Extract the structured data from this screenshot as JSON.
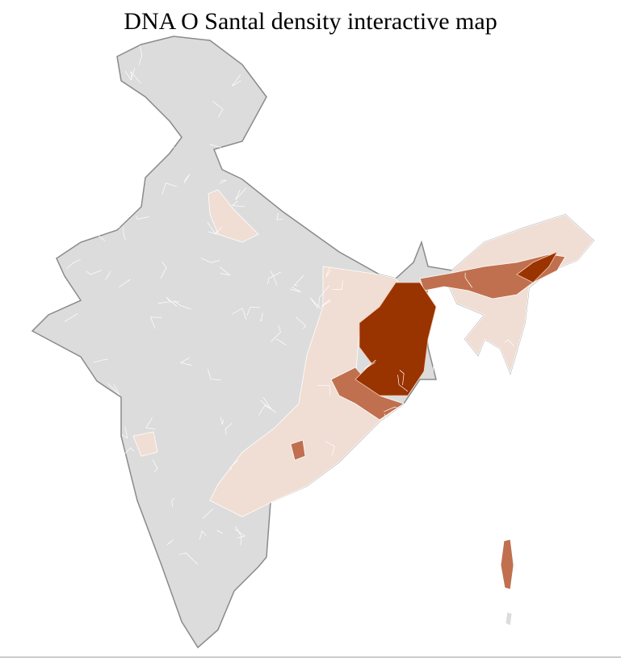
{
  "title": "DNA O Santal density interactive map",
  "colors": {
    "no_data": "#dcdcdc",
    "low": "#f0ddd3",
    "mid_low": "#e6c2b0",
    "mid": "#c0704f",
    "high": "#993300",
    "state_border": "#8a8a8a",
    "district_border": "#ffffff"
  }
}
